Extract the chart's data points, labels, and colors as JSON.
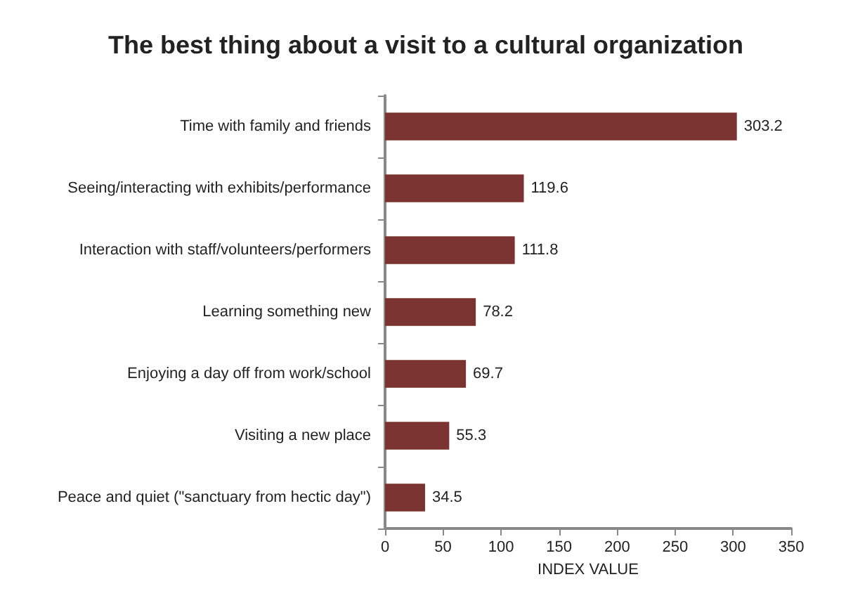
{
  "chart_data": {
    "type": "bar",
    "orientation": "horizontal",
    "title": "The best thing about a visit to a cultural organization",
    "categories": [
      "Time with family and friends",
      "Seeing/interacting with exhibits/performance",
      "Interaction with staff/volunteers/performers",
      "Learning something new",
      "Enjoying a day off from work/school",
      "Visiting a new place",
      "Peace and quiet (\"sanctuary from hectic day\")"
    ],
    "values": [
      303.2,
      119.6,
      111.8,
      78.2,
      69.7,
      55.3,
      34.5
    ],
    "color": "#7b3332",
    "data_labels": true,
    "xlabel": "INDEX VALUE",
    "xlim": [
      0,
      350
    ],
    "xticks": [
      0,
      50,
      100,
      150,
      200,
      250,
      300,
      350
    ]
  }
}
